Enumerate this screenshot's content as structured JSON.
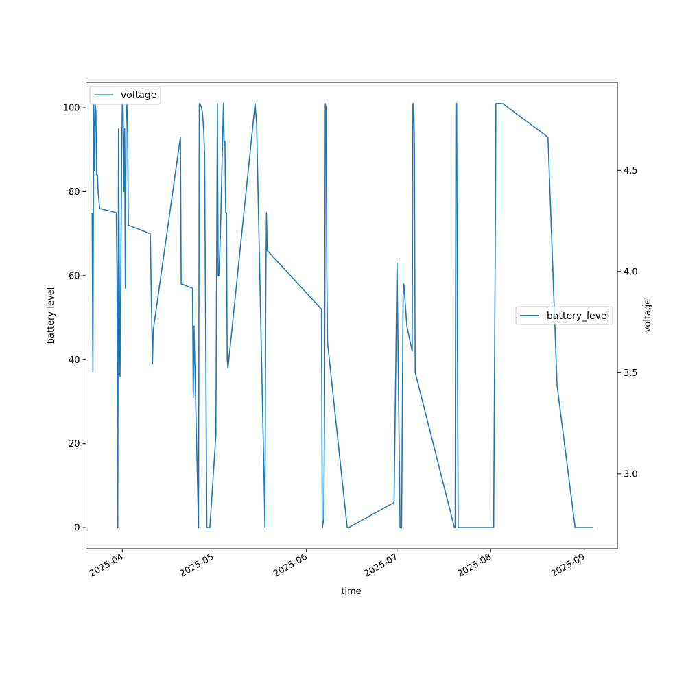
{
  "chart_data": {
    "type": "line",
    "title": "",
    "xlabel": "time",
    "ylabel": "battery level",
    "y2label": "voltage",
    "xlim": [
      "2025-03-20",
      "2025-09-12"
    ],
    "ylim": [
      -5.05,
      106.05
    ],
    "y2lim": [
      2.63,
      4.935
    ],
    "x_ticks": [
      "2025-04",
      "2025-05",
      "2025-06",
      "2025-07",
      "2025-08",
      "2025-09"
    ],
    "y_ticks": [
      0,
      20,
      40,
      60,
      80,
      100
    ],
    "y2_ticks": [
      3.0,
      3.5,
      4.0,
      4.5
    ],
    "grid": false,
    "legend_placement": {
      "voltage": "upper-left",
      "battery_level": "center-right"
    },
    "series": [
      {
        "name": "battery_level",
        "axis": "left",
        "color": "#1f77b4",
        "x": [
          "2025-03-22T00",
          "2025-03-22T06",
          "2025-03-22T12",
          "2025-03-22T18",
          "2025-03-23T00",
          "2025-03-23T06",
          "2025-03-23T12",
          "2025-03-23T18",
          "2025-03-24T00",
          "2025-03-24T06",
          "2025-03-24T12",
          "2025-03-30T00",
          "2025-03-30T06",
          "2025-03-30T12",
          "2025-03-30T18",
          "2025-03-31T00",
          "2025-03-31T06",
          "2025-03-31T12",
          "2025-03-31T18",
          "2025-04-01T00",
          "2025-04-01T06",
          "2025-04-01T12",
          "2025-04-01T18",
          "2025-04-02T00",
          "2025-04-02T06",
          "2025-04-02T12",
          "2025-04-02T18",
          "2025-04-03T00",
          "2025-04-10T06",
          "2025-04-11T00",
          "2025-04-11T06",
          "2025-04-20T06",
          "2025-04-20T12",
          "2025-04-20T18",
          "2025-04-24T06",
          "2025-04-24T12",
          "2025-04-24T18",
          "2025-04-26T06",
          "2025-04-26T12",
          "2025-04-26T18",
          "2025-04-27T06",
          "2025-04-27T12",
          "2025-04-27T18",
          "2025-04-28T00",
          "2025-04-28T06",
          "2025-04-28T12",
          "2025-04-29T00",
          "2025-04-30T00",
          "2025-05-02T00",
          "2025-05-02T12",
          "2025-05-02T18",
          "2025-05-03T00",
          "2025-05-03T12",
          "2025-05-04T12",
          "2025-05-04T18",
          "2025-05-05T00",
          "2025-05-05T06",
          "2025-05-05T12",
          "2025-05-05T18",
          "2025-05-06T00",
          "2025-05-15T00",
          "2025-05-15T12",
          "2025-05-18T00",
          "2025-05-18T06",
          "2025-05-18T12",
          "2025-05-18T18",
          "2025-05-19T00",
          "2025-06-06T00",
          "2025-06-06T06",
          "2025-06-06T18",
          "2025-06-07T00",
          "2025-06-07T06",
          "2025-06-07T12",
          "2025-06-07T18",
          "2025-06-08T00",
          "2025-06-14T12",
          "2025-06-14T18",
          "2025-06-15T00",
          "2025-06-30T00",
          "2025-07-01T00",
          "2025-07-02T00",
          "2025-07-02T12",
          "2025-07-03T00",
          "2025-07-03T06",
          "2025-07-04T06",
          "2025-07-06T00",
          "2025-07-06T06",
          "2025-07-06T12",
          "2025-07-06T18",
          "2025-07-07T00",
          "2025-07-20T00",
          "2025-07-20T06",
          "2025-07-20T12",
          "2025-07-20T18",
          "2025-07-21T00",
          "2025-07-21T06",
          "2025-07-21T12",
          "2025-07-25T00",
          "2025-08-02T00",
          "2025-08-02T12",
          "2025-08-02T18",
          "2025-08-03T00",
          "2025-08-05T00",
          "2025-08-20T00",
          "2025-08-23T00",
          "2025-08-29T00",
          "2025-08-30T00",
          "2025-09-01T00",
          "2025-09-01T12",
          "2025-09-02T00",
          "2025-09-02T06",
          "2025-09-04T00"
        ],
        "values": [
          75,
          37,
          101,
          85,
          101,
          99,
          84,
          84,
          80,
          78,
          76,
          75,
          61,
          0,
          95,
          60,
          36,
          60,
          86,
          101,
          101,
          80,
          95,
          57,
          98,
          101,
          94,
          72,
          70,
          39,
          47,
          93,
          58,
          58,
          57,
          31,
          48,
          0,
          101,
          101,
          100,
          99,
          97,
          94,
          89,
          60,
          0,
          0,
          22,
          101,
          60,
          60,
          70,
          101,
          91,
          92,
          75,
          75,
          40,
          38,
          101,
          96,
          10,
          0,
          53,
          75,
          66,
          52,
          0,
          2,
          28,
          101,
          100,
          61,
          44,
          0,
          0,
          0,
          6,
          63,
          0,
          0,
          55,
          58,
          48,
          42,
          101,
          101,
          91,
          37,
          0,
          0,
          101,
          101,
          44,
          0,
          0,
          0,
          0,
          64,
          101,
          101,
          101,
          93,
          34,
          0,
          0,
          0,
          0,
          0,
          0,
          0
        ],
        "note_values_source": "trace values read from axes"
      },
      {
        "name": "voltage",
        "axis": "right",
        "color": "#66c2a5",
        "x": [],
        "values": []
      }
    ]
  }
}
